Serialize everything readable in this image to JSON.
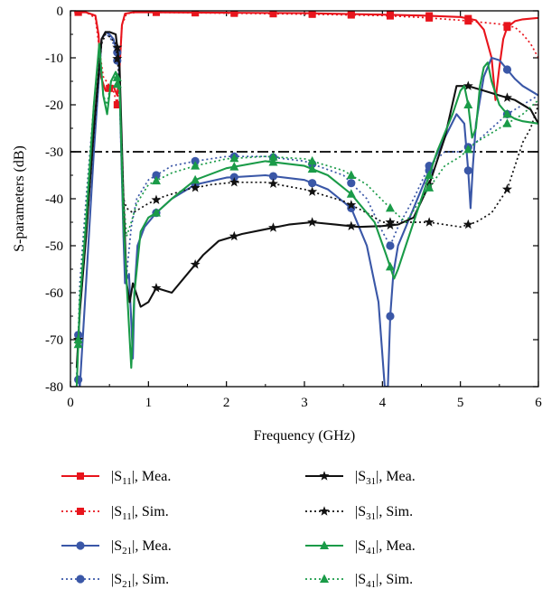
{
  "chart_data": {
    "type": "line",
    "xlabel": "Frequency (GHz)",
    "ylabel": "S-parameters (dB)",
    "xlim": [
      0,
      6
    ],
    "ylim": [
      -80,
      0
    ],
    "xticks": [
      "0",
      "1",
      "2",
      "3",
      "4",
      "5",
      "6"
    ],
    "yticks": [
      "0",
      "-10",
      "-20",
      "-30",
      "-40",
      "-50",
      "-60",
      "-70",
      "-80"
    ],
    "grid": false,
    "reference_line": {
      "y": -30,
      "style": "dash-dot",
      "color": "#000000"
    },
    "legend_position": "bottom",
    "series": [
      {
        "key": "s11_mea",
        "label": {
          "sub": "11",
          "suffix": ", Mea."
        },
        "color": "#e8141c",
        "dash": "solid",
        "marker": "square",
        "x": [
          0.05,
          0.2,
          0.32,
          0.36,
          0.39,
          0.45,
          0.55,
          0.6,
          0.63,
          0.66,
          0.7,
          0.8,
          1,
          2,
          3,
          4,
          4.5,
          5,
          5.2,
          5.3,
          5.4,
          5.45,
          5.5,
          5.55,
          5.6,
          5.7,
          5.8,
          6
        ],
        "y": [
          -0.3,
          -0.3,
          -1,
          -5,
          -14,
          -17,
          -16,
          -18,
          -12,
          -3,
          -0.6,
          -0.3,
          -0.3,
          -0.4,
          -0.5,
          -0.8,
          -1,
          -1.3,
          -2,
          -4,
          -10,
          -19,
          -12,
          -6,
          -3.5,
          -2.2,
          -1.8,
          -1.5
        ],
        "marker_x": [
          0.1,
          0.5,
          1.1,
          1.6,
          2.1,
          2.6,
          3.1,
          3.6,
          4.1,
          4.6,
          5.1,
          5.6
        ]
      },
      {
        "key": "s11_sim",
        "label": {
          "sub": "11",
          "suffix": ", Sim."
        },
        "color": "#e8141c",
        "dash": "dotted",
        "marker": "square",
        "x": [
          0.05,
          0.2,
          0.32,
          0.37,
          0.42,
          0.5,
          0.55,
          0.6,
          0.63,
          0.66,
          0.72,
          0.85,
          1,
          2,
          3,
          4,
          4.5,
          5,
          5.5,
          5.7,
          5.8,
          5.9,
          6
        ],
        "y": [
          -0.3,
          -0.3,
          -1.5,
          -8,
          -14,
          -16,
          -17,
          -20,
          -12,
          -3,
          -0.6,
          -0.3,
          -0.3,
          -0.5,
          -0.7,
          -1,
          -1.4,
          -2,
          -2.8,
          -3.5,
          -5,
          -7,
          -10
        ],
        "marker_x": [
          0.1,
          0.6,
          1.1,
          1.6,
          2.1,
          2.6,
          3.1,
          3.6,
          4.1,
          4.6,
          5.1,
          5.6
        ]
      },
      {
        "key": "s21_mea",
        "label": {
          "sub": "21",
          "suffix": ", Mea."
        },
        "color": "#3a57a7",
        "dash": "solid",
        "marker": "circle",
        "x": [
          0.08,
          0.12,
          0.2,
          0.3,
          0.4,
          0.45,
          0.5,
          0.55,
          0.62,
          0.68,
          0.7,
          0.75,
          0.78,
          0.8,
          0.82,
          0.86,
          0.95,
          1.1,
          1.3,
          1.6,
          2,
          2.5,
          3,
          3.3,
          3.6,
          3.8,
          3.95,
          4.03,
          4.07,
          4.1,
          4.14,
          4.2,
          4.4,
          4.6,
          4.8,
          4.95,
          5.05,
          5.1,
          5.13,
          5.16,
          5.2,
          5.3,
          5.4,
          5.5,
          5.6,
          5.7,
          5.8,
          6
        ],
        "y": [
          -77,
          -80,
          -58,
          -30,
          -6,
          -4.5,
          -5,
          -6,
          -10,
          -48,
          -58,
          -56,
          -66,
          -74,
          -60,
          -50,
          -46,
          -43,
          -40,
          -37,
          -35.5,
          -35,
          -36,
          -38,
          -42,
          -50,
          -62,
          -80,
          -80,
          -65,
          -56,
          -50,
          -42,
          -34,
          -27,
          -22,
          -24,
          -34,
          -42,
          -33,
          -24,
          -14,
          -10,
          -10.5,
          -12.5,
          -14.5,
          -16,
          -18
        ],
        "marker_x": [
          0.1,
          0.6,
          1.1,
          1.6,
          2.1,
          2.6,
          3.1,
          3.6,
          4.1,
          4.6,
          5.1,
          5.6
        ]
      },
      {
        "key": "s21_sim",
        "label": {
          "sub": "21",
          "suffix": ", Sim."
        },
        "color": "#3a57a7",
        "dash": "dotted",
        "marker": "circle",
        "x": [
          0.08,
          0.12,
          0.2,
          0.3,
          0.4,
          0.45,
          0.5,
          0.55,
          0.62,
          0.68,
          0.72,
          0.78,
          0.85,
          1,
          1.3,
          1.6,
          2,
          2.5,
          3,
          3.5,
          3.8,
          4,
          4.1,
          4.2,
          4.4,
          4.6,
          4.8,
          5,
          5.2,
          5.4,
          5.6,
          5.8,
          6
        ],
        "y": [
          -80,
          -58,
          -40,
          -20,
          -6,
          -5,
          -5.5,
          -7,
          -12,
          -48,
          -56,
          -46,
          -40,
          -36,
          -33,
          -32,
          -31,
          -31,
          -32,
          -35,
          -40,
          -47,
          -50,
          -46,
          -40,
          -33,
          -30,
          -30,
          -28,
          -25,
          -22,
          -20,
          -18
        ],
        "marker_x": [
          0.1,
          0.6,
          1.1,
          1.6,
          2.1,
          2.6,
          3.1,
          3.6,
          4.1,
          4.6,
          5.1,
          5.6
        ]
      },
      {
        "key": "s31_mea",
        "label": {
          "sub": "31",
          "suffix": ", Mea."
        },
        "color": "#111111",
        "dash": "solid",
        "marker": "star",
        "x": [
          0.08,
          0.12,
          0.2,
          0.3,
          0.4,
          0.45,
          0.5,
          0.58,
          0.63,
          0.68,
          0.72,
          0.76,
          0.8,
          0.9,
          1,
          1.1,
          1.3,
          1.5,
          1.7,
          1.9,
          2.2,
          2.5,
          2.8,
          3.1,
          3.4,
          3.7,
          4,
          4.2,
          4.4,
          4.6,
          4.8,
          4.95,
          5.1,
          5.3,
          5.5,
          5.7,
          5.9,
          6
        ],
        "y": [
          -76,
          -64,
          -48,
          -25,
          -6,
          -4.5,
          -4.5,
          -5,
          -12,
          -40,
          -58,
          -62,
          -58,
          -63,
          -62,
          -59,
          -60,
          -56,
          -52,
          -49,
          -47.5,
          -46.5,
          -45.5,
          -45,
          -45.5,
          -46,
          -45.8,
          -45.5,
          -44,
          -37,
          -27,
          -16,
          -16,
          -17,
          -18,
          -19,
          -21,
          -24
        ],
        "marker_x": [
          0.1,
          0.6,
          1.1,
          1.6,
          2.1,
          2.6,
          3.1,
          3.6,
          4.1,
          4.6,
          5.1,
          5.6
        ]
      },
      {
        "key": "s31_sim",
        "label": {
          "sub": "31",
          "suffix": ", Sim."
        },
        "color": "#111111",
        "dash": "dotted",
        "marker": "star",
        "x": [
          0.08,
          0.12,
          0.2,
          0.3,
          0.4,
          0.45,
          0.5,
          0.58,
          0.63,
          0.68,
          0.72,
          0.8,
          0.9,
          1,
          1.2,
          1.5,
          1.8,
          2.1,
          2.5,
          3,
          3.5,
          3.8,
          4,
          4.1,
          4.3,
          4.6,
          5,
          5.2,
          5.4,
          5.6,
          5.8,
          5.9,
          6
        ],
        "y": [
          -76,
          -64,
          -48,
          -26,
          -7,
          -5,
          -5.5,
          -7,
          -15,
          -40,
          -42,
          -43,
          -42,
          -41,
          -39.5,
          -38,
          -37,
          -36.5,
          -36.5,
          -38,
          -40.5,
          -43,
          -45,
          -45,
          -45,
          -45,
          -46,
          -45,
          -43,
          -38,
          -28,
          -25,
          -20
        ],
        "marker_x": [
          0.1,
          0.6,
          1.1,
          1.6,
          2.1,
          2.6,
          3.1,
          3.6,
          4.1,
          4.6,
          5.1,
          5.6
        ]
      },
      {
        "key": "s41_mea",
        "label": {
          "sub": "41",
          "suffix": ", Mea."
        },
        "color": "#1a9b48",
        "dash": "solid",
        "marker": "triangle",
        "x": [
          0.08,
          0.12,
          0.2,
          0.3,
          0.37,
          0.42,
          0.47,
          0.52,
          0.58,
          0.63,
          0.68,
          0.72,
          0.76,
          0.78,
          0.82,
          0.9,
          1,
          1.1,
          1.3,
          1.6,
          2,
          2.5,
          3,
          3.3,
          3.6,
          3.9,
          4.05,
          4.15,
          4.2,
          4.3,
          4.5,
          4.7,
          4.9,
          5,
          5.05,
          5.1,
          5.15,
          5.2,
          5.25,
          5.3,
          5.35,
          5.4,
          5.5,
          5.6,
          5.7,
          5.8,
          6
        ],
        "y": [
          -80,
          -62,
          -45,
          -20,
          -7,
          -18,
          -22,
          -15,
          -13,
          -16,
          -45,
          -58,
          -70,
          -76,
          -60,
          -47,
          -44,
          -43,
          -40,
          -36,
          -33.5,
          -32,
          -33,
          -35,
          -39,
          -45,
          -52,
          -57,
          -55,
          -50,
          -40,
          -30,
          -22,
          -17,
          -16,
          -20,
          -27,
          -25,
          -16,
          -12,
          -11,
          -15,
          -20,
          -22,
          -23,
          -23.5,
          -24
        ],
        "marker_x": [
          0.1,
          0.6,
          1.1,
          1.6,
          2.1,
          2.6,
          3.1,
          3.6,
          4.1,
          4.6,
          5.1,
          5.6
        ]
      },
      {
        "key": "s41_sim",
        "label": {
          "sub": "41",
          "suffix": ", Sim."
        },
        "color": "#1a9b48",
        "dash": "dotted",
        "marker": "triangle",
        "x": [
          0.08,
          0.12,
          0.2,
          0.3,
          0.37,
          0.42,
          0.47,
          0.52,
          0.58,
          0.63,
          0.68,
          0.72,
          0.78,
          0.85,
          1,
          1.3,
          1.6,
          2,
          2.5,
          3,
          3.5,
          3.8,
          4.1,
          4.3,
          4.5,
          4.8,
          5,
          5.2,
          5.4,
          5.6,
          5.8,
          6
        ],
        "y": [
          -80,
          -60,
          -42,
          -20,
          -8,
          -18,
          -20,
          -15,
          -14,
          -18,
          -40,
          -48,
          -45,
          -41,
          -37,
          -34.5,
          -33,
          -31.5,
          -31,
          -31.5,
          -34,
          -37,
          -42,
          -45,
          -40,
          -33,
          -31,
          -28,
          -26,
          -24,
          -22,
          -19
        ],
        "marker_x": [
          0.1,
          0.6,
          1.1,
          1.6,
          2.1,
          2.6,
          3.1,
          3.6,
          4.1,
          4.6,
          5.1,
          5.6
        ]
      }
    ]
  }
}
